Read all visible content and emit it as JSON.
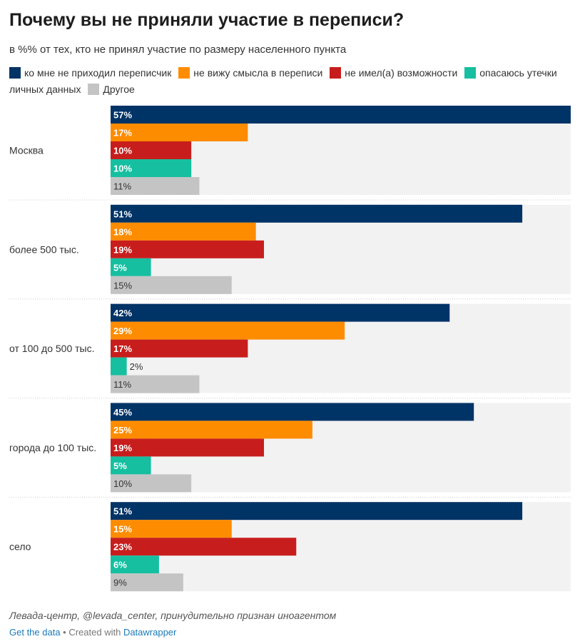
{
  "title": "Почему вы не приняли участие в переписи?",
  "subtitle": "в %% от тех, кто не принял участие по размеру населенного пункта",
  "legend": [
    {
      "label": "ко мне не приходил переписчик",
      "color": "#003366"
    },
    {
      "label": "не вижу смысла в переписи",
      "color": "#fe8c00"
    },
    {
      "label": "не имел(а) возможности",
      "color": "#c71e1d"
    },
    {
      "label": "опасаюсь утечки личных данных",
      "color": "#15bfa0"
    },
    {
      "label": "Другое",
      "color": "#c4c4c4"
    }
  ],
  "footer": {
    "source": "Левада-центр, @levada_center, принудительно признан иноагентом",
    "get_data": "Get the data",
    "separator": " • ",
    "created_with": "Created with ",
    "tool": "Datawrapper"
  },
  "chart_data": {
    "type": "bar",
    "orientation": "horizontal",
    "value_suffix": "%",
    "xlim": [
      0,
      57
    ],
    "background_color": "#f2f2f2",
    "categories": [
      "Москва",
      "более 500 тыс.",
      "от 100 до 500 тыс.",
      "города до 100 тыс.",
      "село"
    ],
    "series": [
      {
        "name": "ко мне не приходил переписчик",
        "color": "#003366",
        "values": [
          57,
          51,
          42,
          45,
          51
        ]
      },
      {
        "name": "не вижу смысла в переписи",
        "color": "#fe8c00",
        "values": [
          17,
          18,
          29,
          25,
          15
        ]
      },
      {
        "name": "не имел(а) возможности",
        "color": "#c71e1d",
        "values": [
          10,
          19,
          17,
          19,
          23
        ]
      },
      {
        "name": "опасаюсь утечки личных данных",
        "color": "#15bfa0",
        "values": [
          10,
          5,
          2,
          5,
          6
        ]
      },
      {
        "name": "Другое",
        "color": "#c4c4c4",
        "values": [
          11,
          15,
          11,
          10,
          9
        ]
      }
    ]
  }
}
